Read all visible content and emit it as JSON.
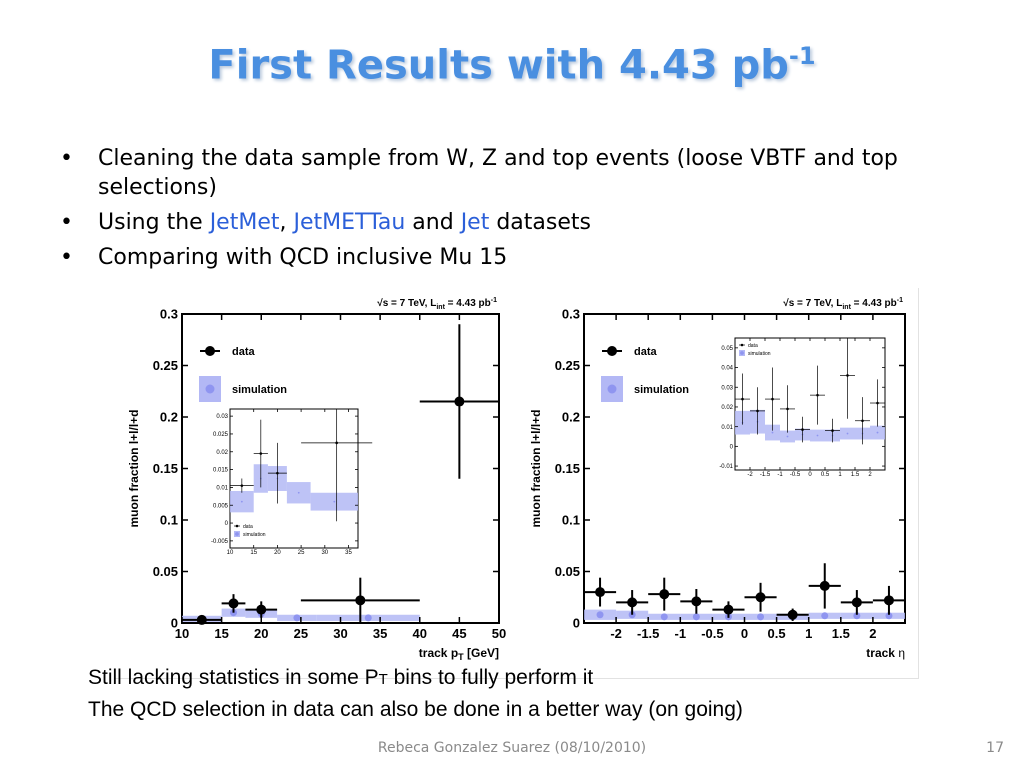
{
  "slide": {
    "title_main": "First Results with 4.43 pb",
    "title_sup": "-1",
    "bullets": [
      [
        "Cleaning the data sample from W, Z and top events (loose VBTF and top selections)"
      ],
      [
        "Using the ",
        "JetMet",
        ", ",
        "JetMETTau",
        " and ",
        "Jet",
        " datasets"
      ],
      [
        "Comparing with QCD inclusive Mu 15"
      ]
    ],
    "note1_a": "Still lacking statistics in some P",
    "note1_b": "T",
    "note1_c": " bins to fully perform it",
    "note2": "The QCD selection in data can also be done in a better way (on going)",
    "footer": "Rebeca Gonzalez Suarez  (08/10/2010)",
    "page_number": "17"
  },
  "colors": {
    "title": "#4a8fe0",
    "highlight": "#2b5fd9",
    "simulation_band": "#b3b8f5",
    "simulation_point": "#8f95f0",
    "data": "#000000"
  },
  "chart_data": [
    {
      "type": "scatter",
      "energy_label": "√s = 7 TeV, L",
      "energy_sub": "int",
      "energy_tail": " = 4.43 pb",
      "energy_sup": "-1",
      "ylabel": "muon fraction l+l/l+d",
      "xlabel": "track p",
      "xlabel_sub": "T",
      "xlabel_unit": " [GeV]",
      "xlim": [
        10,
        50
      ],
      "ylim": [
        0,
        0.3
      ],
      "xticks": [
        "10",
        "15",
        "20",
        "25",
        "30",
        "35",
        "40",
        "45",
        "50"
      ],
      "xtick_values": [
        10,
        15,
        20,
        25,
        30,
        35,
        40,
        45,
        50
      ],
      "yticks": [
        "0",
        "0.05",
        "0.1",
        "0.15",
        "0.2",
        "0.25",
        "0.3"
      ],
      "ytick_values": [
        0,
        0.05,
        0.1,
        0.15,
        0.2,
        0.25,
        0.3
      ],
      "legend": [
        "data",
        "simulation"
      ],
      "data": [
        {
          "x": 12.5,
          "xerr": 2.5,
          "y": 0.003,
          "yerr": 0.004
        },
        {
          "x": 16.5,
          "xerr": 1.5,
          "y": 0.019,
          "yerr": 0.009
        },
        {
          "x": 20,
          "xerr": 2,
          "y": 0.013,
          "yerr": 0.008
        },
        {
          "x": 32.5,
          "xerr": 7.5,
          "y": 0.022,
          "yerr": 0.022
        },
        {
          "x": 45,
          "xerr": 5,
          "y": 0.215,
          "yerr": 0.075
        }
      ],
      "simulation": [
        {
          "x0": 10,
          "x1": 15,
          "y": 0.004,
          "err": 0.003
        },
        {
          "x0": 15,
          "x1": 18,
          "y": 0.01,
          "err": 0.004
        },
        {
          "x0": 18,
          "x1": 22,
          "y": 0.009,
          "err": 0.004
        },
        {
          "x0": 22,
          "x1": 27,
          "y": 0.005,
          "err": 0.003
        },
        {
          "x0": 27,
          "x1": 40,
          "y": 0.005,
          "err": 0.003
        }
      ],
      "inset": {
        "xlim": [
          10,
          37
        ],
        "ylim": [
          -0.007,
          0.032
        ],
        "xticks": [
          "10",
          "15",
          "20",
          "25",
          "30",
          "35"
        ],
        "xtick_values": [
          10,
          15,
          20,
          25,
          30,
          35
        ],
        "yticks": [
          "-0.005",
          "0",
          "0.005",
          "0.01",
          "0.015",
          "0.02",
          "0.025",
          "0.03"
        ],
        "ytick_values": [
          -0.005,
          0,
          0.005,
          0.01,
          0.015,
          0.02,
          0.025,
          0.03
        ],
        "legend": [
          "data",
          "simulation"
        ],
        "data": [
          {
            "x": 12.5,
            "xerr": 2.5,
            "y": 0.0105,
            "yerr": 0.002
          },
          {
            "x": 16.5,
            "xerr": 1.5,
            "y": 0.0195,
            "yerr": 0.0095
          },
          {
            "x": 20,
            "xerr": 2,
            "y": 0.014,
            "yerr": 0.0085
          },
          {
            "x": 32.5,
            "xerr": 7.5,
            "y": 0.0225,
            "yerr": 0.022
          }
        ],
        "simulation": [
          {
            "x0": 10,
            "x1": 15,
            "y": 0.006,
            "err": 0.003
          },
          {
            "x0": 15,
            "x1": 18,
            "y": 0.0125,
            "err": 0.004
          },
          {
            "x0": 18,
            "x1": 22,
            "y": 0.0125,
            "err": 0.0035
          },
          {
            "x0": 22,
            "x1": 27,
            "y": 0.0085,
            "err": 0.003
          },
          {
            "x0": 27,
            "x1": 37,
            "y": 0.006,
            "err": 0.0025
          }
        ]
      }
    },
    {
      "type": "scatter",
      "energy_label": "√s = 7 TeV, L",
      "energy_sub": "int",
      "energy_tail": " = 4.43 pb",
      "energy_sup": "-1",
      "ylabel": "muon fraction l+l/l+d",
      "xlabel": "track",
      "xlabel_greek": "η",
      "xlim": [
        -2.5,
        2.5
      ],
      "ylim": [
        0,
        0.3
      ],
      "xticks": [
        "-2",
        "-1.5",
        "-1",
        "-0.5",
        "0",
        "0.5",
        "1",
        "1.5",
        "2"
      ],
      "xtick_values": [
        -2,
        -1.5,
        -1,
        -0.5,
        0,
        0.5,
        1,
        1.5,
        2
      ],
      "yticks": [
        "0",
        "0.05",
        "0.1",
        "0.15",
        "0.2",
        "0.25",
        "0.3"
      ],
      "ytick_values": [
        0,
        0.05,
        0.1,
        0.15,
        0.2,
        0.25,
        0.3
      ],
      "legend": [
        "data",
        "simulation"
      ],
      "data": [
        {
          "x": -2.25,
          "xerr": 0.25,
          "y": 0.03,
          "yerr": 0.014
        },
        {
          "x": -1.75,
          "xerr": 0.25,
          "y": 0.02,
          "yerr": 0.012
        },
        {
          "x": -1.25,
          "xerr": 0.25,
          "y": 0.028,
          "yerr": 0.016
        },
        {
          "x": -0.75,
          "xerr": 0.25,
          "y": 0.021,
          "yerr": 0.012
        },
        {
          "x": -0.25,
          "xerr": 0.25,
          "y": 0.013,
          "yerr": 0.008
        },
        {
          "x": 0.25,
          "xerr": 0.25,
          "y": 0.025,
          "yerr": 0.014
        },
        {
          "x": 0.75,
          "xerr": 0.25,
          "y": 0.008,
          "yerr": 0.006
        },
        {
          "x": 1.25,
          "xerr": 0.25,
          "y": 0.036,
          "yerr": 0.022
        },
        {
          "x": 1.75,
          "xerr": 0.25,
          "y": 0.02,
          "yerr": 0.012
        },
        {
          "x": 2.25,
          "xerr": 0.25,
          "y": 0.022,
          "yerr": 0.014
        }
      ],
      "simulation": [
        {
          "x0": -2.5,
          "x1": -2,
          "y": 0.008,
          "err": 0.005
        },
        {
          "x0": -2,
          "x1": -1.5,
          "y": 0.008,
          "err": 0.004
        },
        {
          "x0": -1.5,
          "x1": -1,
          "y": 0.006,
          "err": 0.003
        },
        {
          "x0": -1,
          "x1": -0.5,
          "y": 0.006,
          "err": 0.003
        },
        {
          "x0": -0.5,
          "x1": 0,
          "y": 0.006,
          "err": 0.003
        },
        {
          "x0": 0,
          "x1": 0.5,
          "y": 0.006,
          "err": 0.003
        },
        {
          "x0": 0.5,
          "x1": 1,
          "y": 0.006,
          "err": 0.003
        },
        {
          "x0": 1,
          "x1": 1.5,
          "y": 0.007,
          "err": 0.003
        },
        {
          "x0": 1.5,
          "x1": 2,
          "y": 0.007,
          "err": 0.003
        },
        {
          "x0": 2,
          "x1": 2.5,
          "y": 0.007,
          "err": 0.003
        }
      ],
      "inset": {
        "xlim": [
          -2.5,
          2.5
        ],
        "ylim": [
          -0.012,
          0.055
        ],
        "xticks": [
          "-2",
          "-1.5",
          "-1",
          "-0.5",
          "0",
          "0.5",
          "1",
          "1.5",
          "2"
        ],
        "xtick_values": [
          -2,
          -1.5,
          -1,
          -0.5,
          0,
          0.5,
          1,
          1.5,
          2
        ],
        "yticks": [
          "-0.01",
          "0",
          "0.01",
          "0.02",
          "0.03",
          "0.04",
          "0.05"
        ],
        "ytick_values": [
          -0.01,
          0,
          0.01,
          0.02,
          0.03,
          0.04,
          0.05
        ],
        "legend": [
          "data",
          "simulation"
        ],
        "data": [
          {
            "x": -2.25,
            "xerr": 0.25,
            "y": 0.024,
            "yerr": 0.013
          },
          {
            "x": -1.75,
            "xerr": 0.25,
            "y": 0.018,
            "yerr": 0.012
          },
          {
            "x": -1.25,
            "xerr": 0.25,
            "y": 0.024,
            "yerr": 0.016
          },
          {
            "x": -0.75,
            "xerr": 0.25,
            "y": 0.019,
            "yerr": 0.012
          },
          {
            "x": -0.25,
            "xerr": 0.25,
            "y": 0.0085,
            "yerr": 0.0065
          },
          {
            "x": 0.25,
            "xerr": 0.25,
            "y": 0.026,
            "yerr": 0.015
          },
          {
            "x": 0.75,
            "xerr": 0.25,
            "y": 0.008,
            "yerr": 0.006
          },
          {
            "x": 1.25,
            "xerr": 0.25,
            "y": 0.036,
            "yerr": 0.022
          },
          {
            "x": 1.75,
            "xerr": 0.25,
            "y": 0.013,
            "yerr": 0.012
          },
          {
            "x": 2.25,
            "xerr": 0.25,
            "y": 0.022,
            "yerr": 0.012
          }
        ],
        "simulation": [
          {
            "x0": -2.5,
            "x1": -2,
            "y": 0.012,
            "err": 0.006
          },
          {
            "x0": -2,
            "x1": -1.5,
            "y": 0.0125,
            "err": 0.006
          },
          {
            "x0": -1.5,
            "x1": -1,
            "y": 0.007,
            "err": 0.004
          },
          {
            "x0": -1,
            "x1": -0.5,
            "y": 0.005,
            "err": 0.003
          },
          {
            "x0": -0.5,
            "x1": 0,
            "y": 0.006,
            "err": 0.003
          },
          {
            "x0": 0,
            "x1": 0.5,
            "y": 0.0055,
            "err": 0.003
          },
          {
            "x0": 0.5,
            "x1": 1,
            "y": 0.0055,
            "err": 0.003
          },
          {
            "x0": 1,
            "x1": 1.5,
            "y": 0.0065,
            "err": 0.003
          },
          {
            "x0": 1.5,
            "x1": 2,
            "y": 0.0065,
            "err": 0.003
          },
          {
            "x0": 2,
            "x1": 2.5,
            "y": 0.007,
            "err": 0.0035
          }
        ]
      }
    }
  ]
}
